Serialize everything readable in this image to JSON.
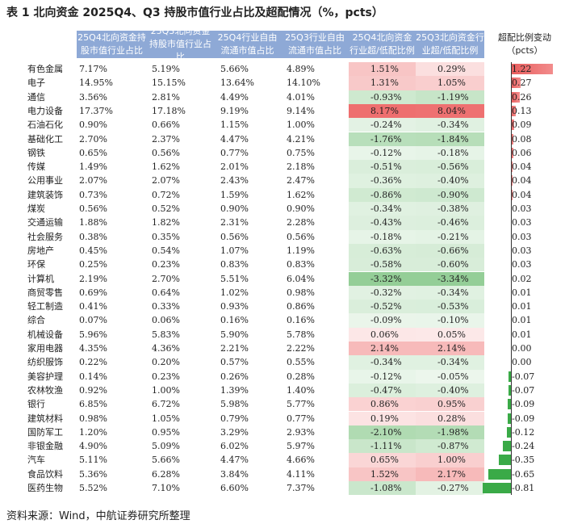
{
  "title": "表 1 北向资金 2025Q4、Q3 持股市值行业占比及超配情况（%，pcts）",
  "source": "资料来源：Wind，中航证券研究所整理",
  "headers": [
    "25Q4北向资金持股市值行业占比",
    "25Q3北向资金持股市值行业占比",
    "25Q4行业自由流通市值占比",
    "25Q3行业自由流通市值占比",
    "25Q4北向资金行业超/低配比例",
    "25Q3北向资金行业超/低配比例",
    "超配比例变动（pcts）"
  ],
  "colors": {
    "header": "#8ea9d6",
    "pos_bar": "#e85c5c",
    "neg_bar": "#3aaa47"
  },
  "rows": [
    {
      "name": "有色金属",
      "c1": "7.17%",
      "c2": "5.19%",
      "c3": "5.66%",
      "c4": "4.89%",
      "c5": "1.51%",
      "c6": "0.29%",
      "chg": "1.22",
      "v5": 1.51,
      "v6": 0.29,
      "d": 1.22
    },
    {
      "name": "电子",
      "c1": "14.95%",
      "c2": "15.15%",
      "c3": "13.64%",
      "c4": "14.10%",
      "c5": "1.31%",
      "c6": "1.05%",
      "chg": "0.27",
      "v5": 1.31,
      "v6": 1.05,
      "d": 0.27
    },
    {
      "name": "通信",
      "c1": "3.56%",
      "c2": "2.81%",
      "c3": "4.49%",
      "c4": "4.01%",
      "c5": "-0.93%",
      "c6": "-1.19%",
      "chg": "0.26",
      "v5": -0.93,
      "v6": -1.19,
      "d": 0.26
    },
    {
      "name": "电力设备",
      "c1": "17.37%",
      "c2": "17.18%",
      "c3": "9.19%",
      "c4": "9.14%",
      "c5": "8.17%",
      "c6": "8.04%",
      "chg": "0.13",
      "v5": 8.17,
      "v6": 8.04,
      "d": 0.13
    },
    {
      "name": "石油石化",
      "c1": "0.90%",
      "c2": "0.66%",
      "c3": "1.15%",
      "c4": "1.00%",
      "c5": "-0.24%",
      "c6": "-0.34%",
      "chg": "0.09",
      "v5": -0.24,
      "v6": -0.34,
      "d": 0.09
    },
    {
      "name": "基础化工",
      "c1": "2.70%",
      "c2": "2.37%",
      "c3": "4.47%",
      "c4": "4.21%",
      "c5": "-1.76%",
      "c6": "-1.84%",
      "chg": "0.08",
      "v5": -1.76,
      "v6": -1.84,
      "d": 0.08
    },
    {
      "name": "钢铁",
      "c1": "0.65%",
      "c2": "0.56%",
      "c3": "0.77%",
      "c4": "0.75%",
      "c5": "-0.12%",
      "c6": "-0.18%",
      "chg": "0.06",
      "v5": -0.12,
      "v6": -0.18,
      "d": 0.06
    },
    {
      "name": "传媒",
      "c1": "1.49%",
      "c2": "1.62%",
      "c3": "2.01%",
      "c4": "2.18%",
      "c5": "-0.51%",
      "c6": "-0.56%",
      "chg": "0.04",
      "v5": -0.51,
      "v6": -0.56,
      "d": 0.04
    },
    {
      "name": "公用事业",
      "c1": "2.07%",
      "c2": "2.07%",
      "c3": "2.43%",
      "c4": "2.47%",
      "c5": "-0.36%",
      "c6": "-0.40%",
      "chg": "0.04",
      "v5": -0.36,
      "v6": -0.4,
      "d": 0.04
    },
    {
      "name": "建筑装饰",
      "c1": "0.73%",
      "c2": "0.72%",
      "c3": "1.59%",
      "c4": "1.62%",
      "c5": "-0.86%",
      "c6": "-0.90%",
      "chg": "0.04",
      "v5": -0.86,
      "v6": -0.9,
      "d": 0.04
    },
    {
      "name": "煤炭",
      "c1": "0.56%",
      "c2": "0.52%",
      "c3": "0.90%",
      "c4": "0.90%",
      "c5": "-0.34%",
      "c6": "-0.38%",
      "chg": "0.03",
      "v5": -0.34,
      "v6": -0.38,
      "d": 0.03
    },
    {
      "name": "交通运输",
      "c1": "1.88%",
      "c2": "1.82%",
      "c3": "2.31%",
      "c4": "2.28%",
      "c5": "-0.43%",
      "c6": "-0.46%",
      "chg": "0.03",
      "v5": -0.43,
      "v6": -0.46,
      "d": 0.03
    },
    {
      "name": "社会服务",
      "c1": "0.38%",
      "c2": "0.35%",
      "c3": "0.56%",
      "c4": "0.56%",
      "c5": "-0.18%",
      "c6": "-0.21%",
      "chg": "0.03",
      "v5": -0.18,
      "v6": -0.21,
      "d": 0.03
    },
    {
      "name": "房地产",
      "c1": "0.45%",
      "c2": "0.54%",
      "c3": "1.07%",
      "c4": "1.19%",
      "c5": "-0.63%",
      "c6": "-0.66%",
      "chg": "0.03",
      "v5": -0.63,
      "v6": -0.66,
      "d": 0.03
    },
    {
      "name": "环保",
      "c1": "0.25%",
      "c2": "0.23%",
      "c3": "0.83%",
      "c4": "0.83%",
      "c5": "-0.58%",
      "c6": "-0.60%",
      "chg": "0.03",
      "v5": -0.58,
      "v6": -0.6,
      "d": 0.03
    },
    {
      "name": "计算机",
      "c1": "2.19%",
      "c2": "2.70%",
      "c3": "5.51%",
      "c4": "6.04%",
      "c5": "-3.32%",
      "c6": "-3.34%",
      "chg": "0.02",
      "v5": -3.32,
      "v6": -3.34,
      "d": 0.02
    },
    {
      "name": "商贸零售",
      "c1": "0.69%",
      "c2": "0.64%",
      "c3": "1.02%",
      "c4": "0.98%",
      "c5": "-0.32%",
      "c6": "-0.34%",
      "chg": "0.01",
      "v5": -0.32,
      "v6": -0.34,
      "d": 0.01
    },
    {
      "name": "轻工制造",
      "c1": "0.41%",
      "c2": "0.33%",
      "c3": "0.93%",
      "c4": "0.86%",
      "c5": "-0.52%",
      "c6": "-0.53%",
      "chg": "0.01",
      "v5": -0.52,
      "v6": -0.53,
      "d": 0.01
    },
    {
      "name": "综合",
      "c1": "0.07%",
      "c2": "0.06%",
      "c3": "0.16%",
      "c4": "0.16%",
      "c5": "-0.09%",
      "c6": "-0.10%",
      "chg": "0.01",
      "v5": -0.09,
      "v6": -0.1,
      "d": 0.01
    },
    {
      "name": "机械设备",
      "c1": "5.96%",
      "c2": "5.83%",
      "c3": "5.90%",
      "c4": "5.78%",
      "c5": "0.06%",
      "c6": "0.05%",
      "chg": "0.01",
      "v5": 0.06,
      "v6": 0.05,
      "d": 0.01
    },
    {
      "name": "家用电器",
      "c1": "4.35%",
      "c2": "4.36%",
      "c3": "2.21%",
      "c4": "2.22%",
      "c5": "2.14%",
      "c6": "2.14%",
      "chg": "0.00",
      "v5": 2.14,
      "v6": 2.14,
      "d": 0.0
    },
    {
      "name": "纺织服饰",
      "c1": "0.22%",
      "c2": "0.20%",
      "c3": "0.57%",
      "c4": "0.55%",
      "c5": "-0.34%",
      "c6": "-0.34%",
      "chg": "0.00",
      "v5": -0.34,
      "v6": -0.34,
      "d": 0.0
    },
    {
      "name": "美容护理",
      "c1": "0.14%",
      "c2": "0.23%",
      "c3": "0.26%",
      "c4": "0.28%",
      "c5": "-0.12%",
      "c6": "-0.05%",
      "chg": "-0.07",
      "v5": -0.12,
      "v6": -0.05,
      "d": -0.07
    },
    {
      "name": "农林牧渔",
      "c1": "0.92%",
      "c2": "1.00%",
      "c3": "1.39%",
      "c4": "1.40%",
      "c5": "-0.47%",
      "c6": "-0.40%",
      "chg": "-0.07",
      "v5": -0.47,
      "v6": -0.4,
      "d": -0.07
    },
    {
      "name": "银行",
      "c1": "6.85%",
      "c2": "6.72%",
      "c3": "5.98%",
      "c4": "5.77%",
      "c5": "0.86%",
      "c6": "0.95%",
      "chg": "-0.09",
      "v5": 0.86,
      "v6": 0.95,
      "d": -0.09
    },
    {
      "name": "建筑材料",
      "c1": "0.98%",
      "c2": "1.05%",
      "c3": "0.79%",
      "c4": "0.77%",
      "c5": "0.19%",
      "c6": "0.28%",
      "chg": "-0.09",
      "v5": 0.19,
      "v6": 0.28,
      "d": -0.09
    },
    {
      "name": "国防军工",
      "c1": "1.20%",
      "c2": "0.95%",
      "c3": "3.29%",
      "c4": "2.93%",
      "c5": "-2.10%",
      "c6": "-1.98%",
      "chg": "-0.12",
      "v5": -2.1,
      "v6": -1.98,
      "d": -0.12
    },
    {
      "name": "非银金融",
      "c1": "4.90%",
      "c2": "5.09%",
      "c3": "6.02%",
      "c4": "5.97%",
      "c5": "-1.11%",
      "c6": "-0.87%",
      "chg": "-0.24",
      "v5": -1.11,
      "v6": -0.87,
      "d": -0.24
    },
    {
      "name": "汽车",
      "c1": "5.11%",
      "c2": "5.66%",
      "c3": "4.47%",
      "c4": "4.66%",
      "c5": "0.65%",
      "c6": "1.00%",
      "chg": "-0.35",
      "v5": 0.65,
      "v6": 1.0,
      "d": -0.35
    },
    {
      "name": "食品饮料",
      "c1": "5.36%",
      "c2": "6.28%",
      "c3": "3.84%",
      "c4": "4.11%",
      "c5": "1.52%",
      "c6": "2.17%",
      "chg": "-0.65",
      "v5": 1.52,
      "v6": 2.17,
      "d": -0.65
    },
    {
      "name": "医药生物",
      "c1": "5.52%",
      "c2": "7.10%",
      "c3": "6.60%",
      "c4": "7.37%",
      "c5": "-1.08%",
      "c6": "-0.27%",
      "chg": "-0.81",
      "v5": -1.08,
      "v6": -0.27,
      "d": -0.81
    }
  ]
}
